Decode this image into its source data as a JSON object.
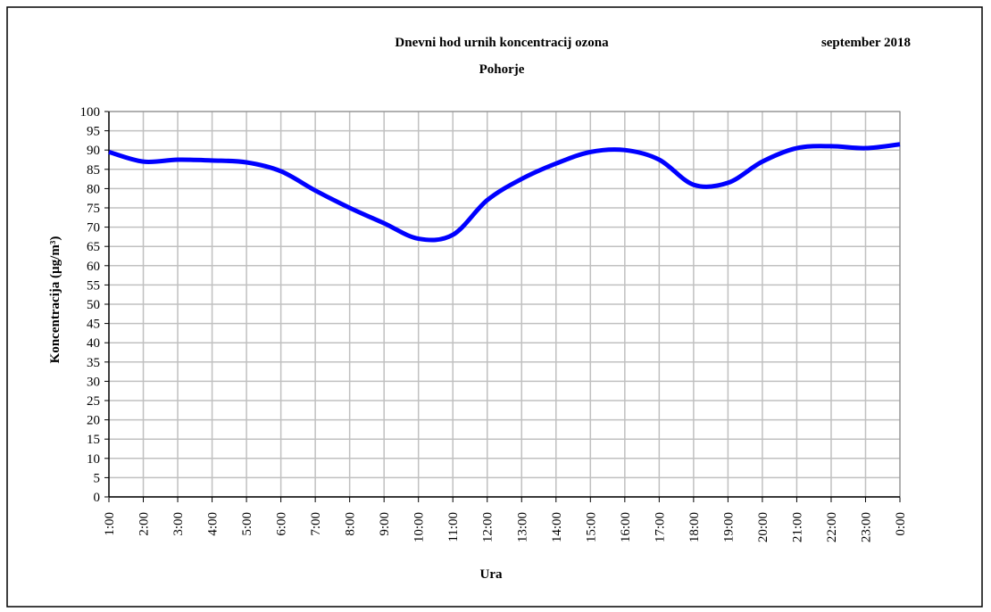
{
  "chart_data": {
    "type": "line",
    "title": "Dnevni hod urnih koncentracij ozona",
    "subtitle": "Pohorje",
    "annotation": "september 2018",
    "x_label": "Ura",
    "y_label": "Koncentracija (µg/m³)",
    "categories": [
      "1:00",
      "2:00",
      "3:00",
      "4:00",
      "5:00",
      "6:00",
      "7:00",
      "8:00",
      "9:00",
      "10:00",
      "11:00",
      "12:00",
      "13:00",
      "14:00",
      "15:00",
      "16:00",
      "17:00",
      "18:00",
      "19:00",
      "20:00",
      "21:00",
      "22:00",
      "23:00",
      "0:00"
    ],
    "values": [
      89.5,
      87,
      87.5,
      87.3,
      86.8,
      84.5,
      79.5,
      75,
      71,
      67,
      68,
      77,
      82.5,
      86.5,
      89.5,
      90,
      87.5,
      81,
      81.5,
      87,
      90.5,
      91,
      90.5,
      91.5
    ],
    "color": "#0000ff",
    "ylim": [
      0,
      100
    ],
    "yticks": [
      0,
      5,
      10,
      15,
      20,
      25,
      30,
      35,
      40,
      45,
      50,
      55,
      60,
      65,
      70,
      75,
      80,
      85,
      90,
      95,
      100
    ],
    "grid": true
  }
}
